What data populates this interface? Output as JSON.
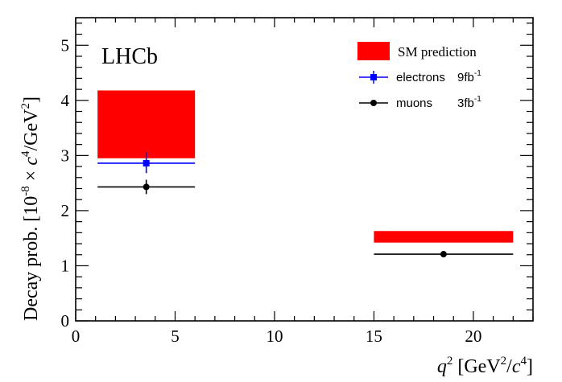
{
  "chart_data": {
    "type": "scatter",
    "title": "",
    "experiment_label": "LHCb",
    "xlabel": {
      "base": "q",
      "sup": "2",
      "unit_open": " [GeV",
      "unit_sup1": "2",
      "unit_mid": "/",
      "unit_c": "c",
      "unit_sup2": "4",
      "unit_close": "]"
    },
    "ylabel": {
      "pre": "Decay prob. [10",
      "sup1": "-8",
      "mid": " × ",
      "c": "c",
      "sup2": "4",
      "post": "/GeV",
      "sup3": "2",
      "close": "]"
    },
    "xlim": [
      0,
      23
    ],
    "ylim": [
      0,
      5.5
    ],
    "xticks": [
      0,
      5,
      10,
      15,
      20
    ],
    "yticks": [
      0,
      1,
      2,
      3,
      4,
      5
    ],
    "grid": false,
    "legend_position": "top-right",
    "series": [
      {
        "name": "SM prediction",
        "kind": "band",
        "color": "#ff0000",
        "bins": [
          {
            "x_low": 1.1,
            "x_high": 6.0,
            "y_low": 2.95,
            "y_high": 4.18
          },
          {
            "x_low": 15.0,
            "x_high": 22.0,
            "y_low": 1.42,
            "y_high": 1.63
          }
        ]
      },
      {
        "name": "electrons",
        "lumi": "9fb",
        "lumi_sup": "-1",
        "kind": "points",
        "marker": "square",
        "color": "#0000ff",
        "points": [
          {
            "x": 3.55,
            "y": 2.86,
            "x_low": 1.1,
            "x_high": 6.0,
            "y_err_low": 0.18,
            "y_err_high": 0.2
          }
        ]
      },
      {
        "name": "muons",
        "lumi": "3fb",
        "lumi_sup": "-1",
        "kind": "points",
        "marker": "circle",
        "color": "#000000",
        "points": [
          {
            "x": 3.55,
            "y": 2.43,
            "x_low": 1.1,
            "x_high": 6.0,
            "y_err_low": 0.13,
            "y_err_high": 0.13
          },
          {
            "x": 18.5,
            "y": 1.21,
            "x_low": 15.0,
            "x_high": 22.0,
            "y_err_low": 0.0,
            "y_err_high": 0.0
          }
        ]
      }
    ]
  }
}
